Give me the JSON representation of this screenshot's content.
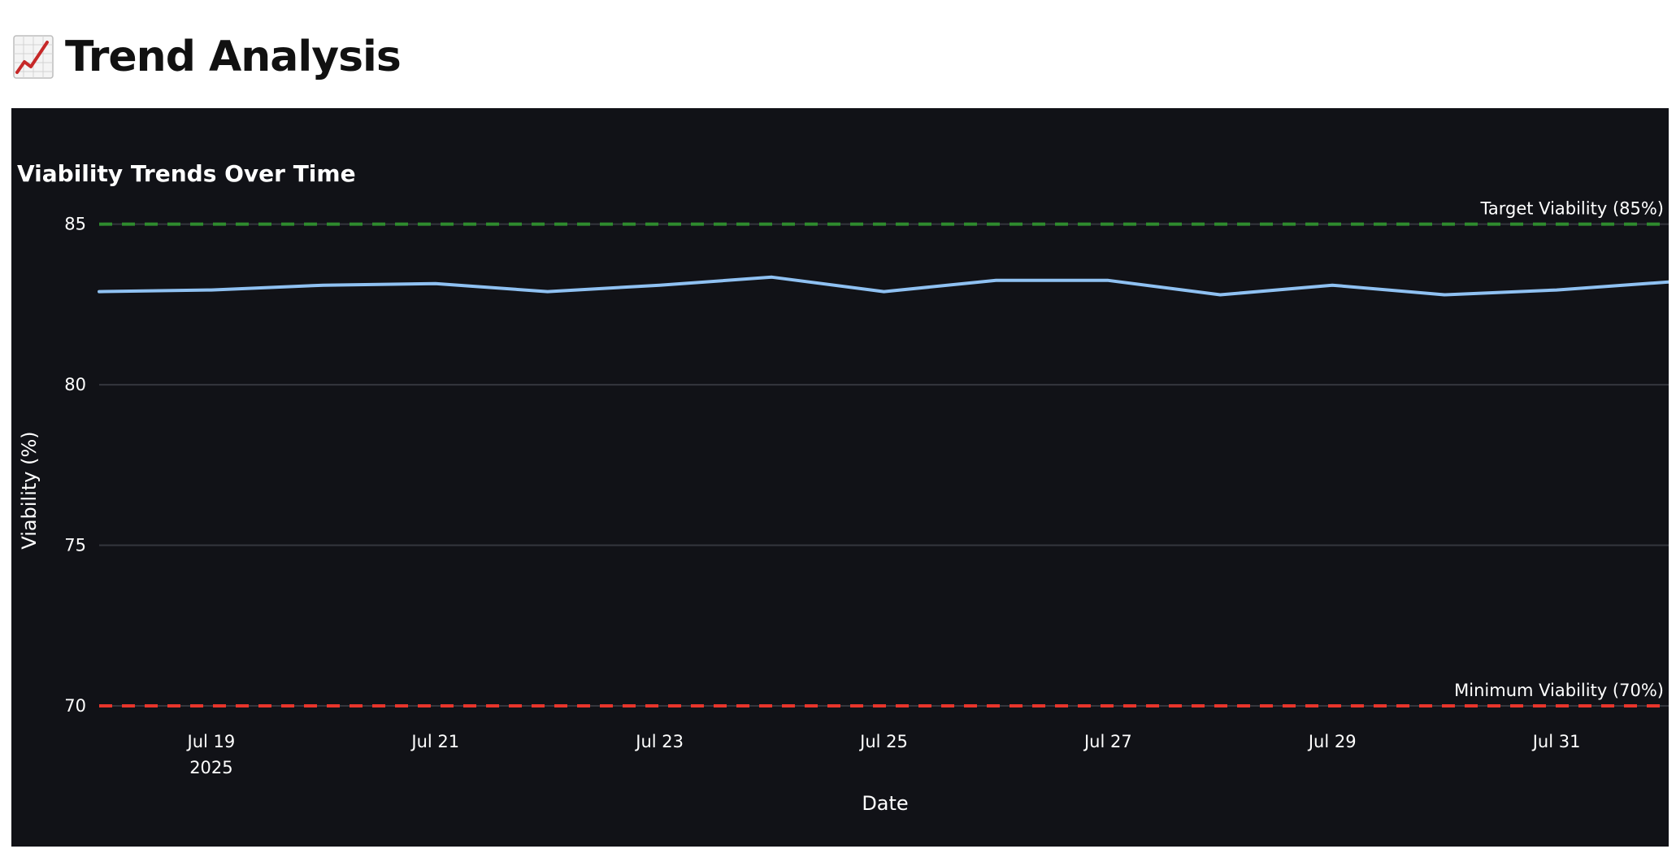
{
  "page": {
    "title": "Trend Analysis",
    "icon": "chart-increasing-icon"
  },
  "chart_data": {
    "type": "line",
    "title": "Viability Trends Over Time",
    "xlabel": "Date",
    "ylabel": "Viability (%)",
    "ylim": [
      70,
      87.6
    ],
    "xlim": [
      "2025-07-18",
      "2025-08-01"
    ],
    "grid": true,
    "background": "#111217",
    "yticks": [
      70,
      75,
      80,
      85
    ],
    "xticks": [
      {
        "date": "2025-07-19",
        "label": "Jul 19",
        "sublabel": "2025"
      },
      {
        "date": "2025-07-21",
        "label": "Jul 21"
      },
      {
        "date": "2025-07-23",
        "label": "Jul 23"
      },
      {
        "date": "2025-07-25",
        "label": "Jul 25"
      },
      {
        "date": "2025-07-27",
        "label": "Jul 27"
      },
      {
        "date": "2025-07-29",
        "label": "Jul 29"
      },
      {
        "date": "2025-07-31",
        "label": "Jul 31"
      }
    ],
    "series": [
      {
        "color": "#8fc1f2",
        "x": [
          "2025-07-18",
          "2025-07-19",
          "2025-07-20",
          "2025-07-21",
          "2025-07-22",
          "2025-07-23",
          "2025-07-24",
          "2025-07-25",
          "2025-07-26",
          "2025-07-27",
          "2025-07-28",
          "2025-07-29",
          "2025-07-30",
          "2025-07-31",
          "2025-08-01"
        ],
        "y": [
          82.9,
          82.95,
          83.1,
          83.15,
          82.9,
          83.1,
          83.35,
          82.9,
          83.25,
          83.25,
          82.8,
          83.1,
          82.8,
          82.95,
          83.2
        ]
      }
    ],
    "reference_lines": [
      {
        "y": 85,
        "label": "Target Viability (85%)",
        "color": "#2e8b2e",
        "style": "dashed"
      },
      {
        "y": 70,
        "label": "Minimum Viability (70%)",
        "color": "#e8352b",
        "style": "dashed"
      }
    ]
  }
}
